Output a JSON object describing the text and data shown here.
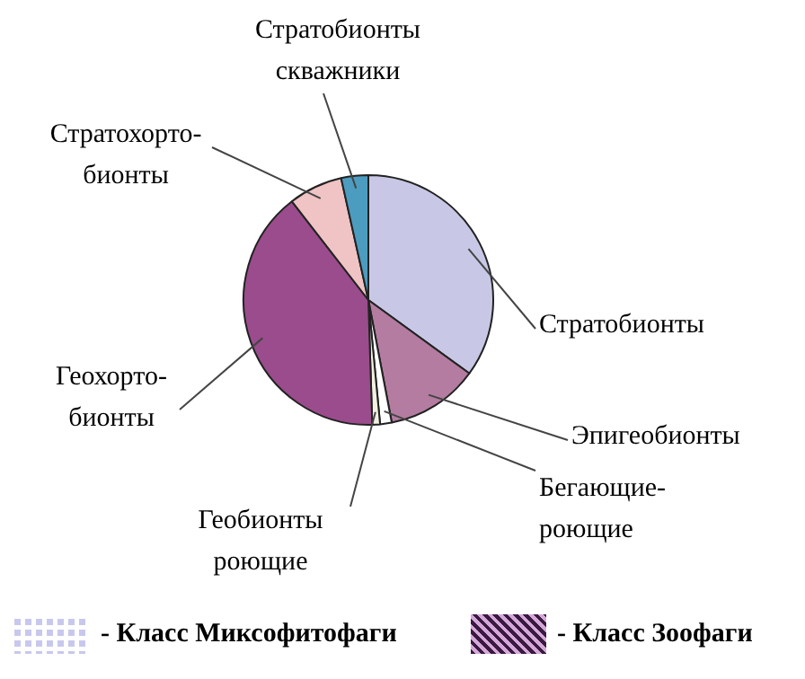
{
  "chart_data": {
    "type": "pie",
    "categories": [
      "Стратобионты",
      "Эпигеобионты",
      "Бегающие-\nроющие",
      "Геобионты\nроющие",
      "Геохорто-\nбионты",
      "Стратохорто-\nбионты",
      "Стратобионты\nскважники"
    ],
    "values": [
      35,
      12,
      1.5,
      1,
      40,
      7,
      3.5
    ],
    "colors": [
      "#c8c8e6",
      "#b47ca0",
      "#ffffff",
      "#f2f0e0",
      "#9a4c8c",
      "#f0c4c4",
      "#4c9cc0"
    ],
    "annotations": [
      "- Класс Миксофитофаги",
      "- Класс Зоофаги"
    ]
  }
}
